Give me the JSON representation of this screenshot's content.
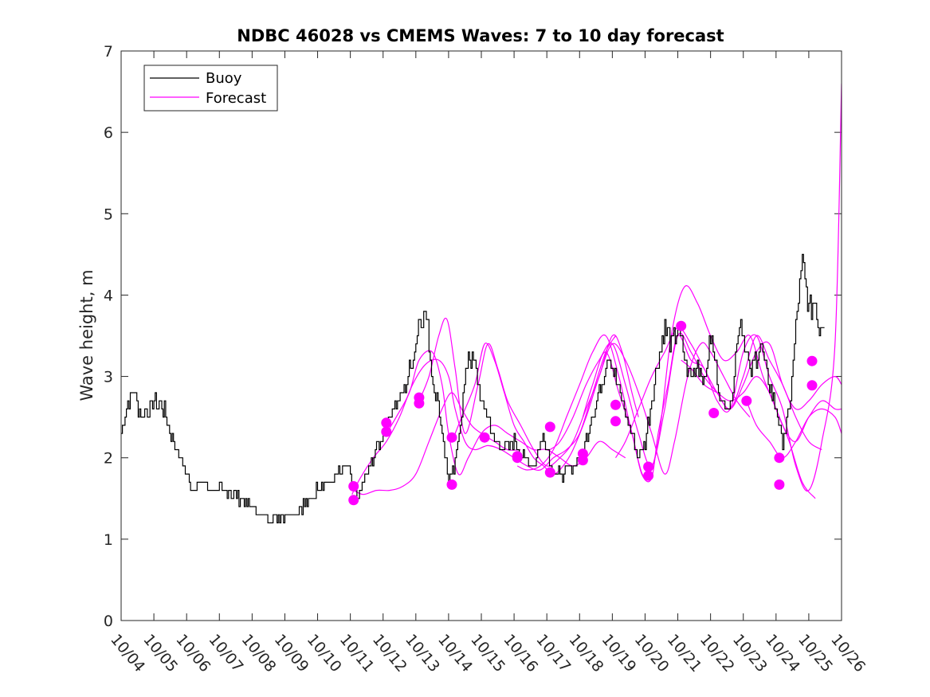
{
  "chart_data": {
    "type": "line",
    "title": "NDBC 46028 vs CMEMS Waves: 7 to 10 day forecast",
    "xlabel": "",
    "ylabel": "Wave height, m",
    "xlim": [
      0,
      22
    ],
    "ylim": [
      0,
      7
    ],
    "yticks": [
      0,
      1,
      2,
      3,
      4,
      5,
      6,
      7
    ],
    "xtick_labels": [
      "10/04",
      "10/05",
      "10/06",
      "10/07",
      "10/08",
      "10/09",
      "10/10",
      "10/11",
      "10/12",
      "10/13",
      "10/14",
      "10/15",
      "10/16",
      "10/17",
      "10/18",
      "10/19",
      "10/20",
      "10/21",
      "10/22",
      "10/23",
      "10/24",
      "10/25",
      "10/26"
    ],
    "legend": {
      "position": "top-left",
      "entries": [
        "Buoy",
        "Forecast"
      ]
    },
    "colors": {
      "buoy": "#000000",
      "forecast": "#ff00ff"
    },
    "buoy": {
      "name": "Buoy",
      "step": 0.04,
      "x": [
        0.0,
        0.2,
        0.4,
        0.6,
        0.8,
        1.0,
        1.3,
        1.5,
        1.8,
        2.0,
        2.2,
        2.5,
        2.8,
        3.2,
        3.6,
        4.0,
        4.3,
        4.6,
        4.9,
        5.2,
        5.5,
        5.8,
        6.1,
        6.4,
        6.6,
        6.9,
        7.2,
        7.5,
        7.8,
        8.0,
        8.3,
        8.6,
        8.9,
        9.1,
        9.3,
        9.5,
        9.7,
        9.9,
        10.0,
        10.2,
        10.4,
        10.6,
        10.8,
        11.0,
        11.2,
        11.4,
        11.7,
        12.0,
        12.3,
        12.6,
        12.9,
        13.2,
        13.5,
        13.8,
        14.0,
        14.3,
        14.6,
        14.9,
        15.2,
        15.5,
        15.8,
        16.0,
        16.3,
        16.6,
        16.8,
        17.0,
        17.2,
        17.4,
        17.6,
        17.8,
        18.0,
        18.3,
        18.6,
        18.9,
        19.2,
        19.5,
        19.8,
        20.0,
        20.2,
        20.4,
        20.6,
        20.8,
        21.0,
        21.2,
        21.3,
        21.5
      ],
      "y": [
        2.3,
        2.7,
        2.8,
        2.5,
        2.6,
        2.7,
        2.6,
        2.3,
        2.0,
        1.8,
        1.6,
        1.7,
        1.6,
        1.6,
        1.5,
        1.4,
        1.3,
        1.25,
        1.3,
        1.3,
        1.4,
        1.5,
        1.7,
        1.7,
        1.8,
        1.9,
        1.5,
        1.8,
        2.1,
        2.3,
        2.6,
        2.8,
        3.2,
        3.7,
        3.8,
        3.0,
        2.6,
        2.0,
        1.7,
        1.9,
        2.6,
        3.3,
        3.1,
        2.7,
        2.5,
        2.2,
        2.1,
        2.2,
        2.0,
        1.9,
        2.3,
        1.8,
        1.8,
        1.9,
        2.0,
        2.4,
        2.8,
        3.3,
        2.8,
        2.4,
        2.0,
        2.2,
        3.0,
        3.6,
        3.4,
        3.6,
        3.2,
        3.0,
        3.2,
        2.9,
        3.5,
        2.7,
        2.6,
        3.8,
        3.0,
        3.4,
        2.9,
        2.6,
        2.2,
        2.6,
        3.6,
        4.4,
        3.8,
        3.9,
        3.6,
        3.7
      ]
    },
    "forecast_series": [
      {
        "name": "Forecast",
        "x": [
          7.05,
          7.3,
          7.7,
          8.1,
          8.5,
          8.9,
          9.3,
          9.7,
          10.0,
          10.2,
          10.5,
          10.8,
          11.2,
          11.6,
          12.0,
          12.4,
          12.8,
          13.2,
          13.6,
          14.0,
          14.4,
          14.8,
          15.1
        ],
        "y": [
          1.55,
          1.75,
          2.0,
          2.2,
          2.5,
          2.9,
          3.15,
          3.2,
          3.0,
          2.6,
          2.2,
          2.1,
          2.15,
          2.1,
          2.0,
          1.9,
          1.85,
          2.0,
          2.1,
          2.3,
          2.8,
          3.3,
          3.5
        ]
      },
      {
        "name": "Forecast",
        "x": [
          7.1,
          7.4,
          7.8,
          8.2,
          8.6,
          9.0,
          9.4,
          9.8,
          10.1,
          10.4,
          10.7,
          11.0,
          11.4,
          11.8,
          12.2
        ],
        "y": [
          1.6,
          1.55,
          1.6,
          1.6,
          1.65,
          1.8,
          2.2,
          2.6,
          2.8,
          2.6,
          2.4,
          2.3,
          2.2,
          2.1,
          2.1
        ]
      },
      {
        "name": "Forecast",
        "x": [
          8.1,
          8.4,
          8.8,
          9.1,
          9.5,
          9.8,
          10.0,
          10.3,
          10.6,
          11.0,
          11.4,
          11.8,
          12.2,
          12.6,
          13.0,
          13.4,
          13.8,
          14.2,
          14.6,
          15.0,
          15.4
        ],
        "y": [
          2.3,
          2.5,
          2.8,
          3.2,
          3.3,
          2.9,
          2.3,
          1.8,
          2.0,
          2.3,
          2.4,
          2.3,
          2.2,
          2.1,
          2.1,
          2.0,
          1.9,
          2.0,
          2.2,
          2.1,
          2.0
        ]
      },
      {
        "name": "Forecast",
        "x": [
          9.1,
          9.4,
          9.7,
          9.95,
          10.2,
          10.5,
          10.9,
          11.2,
          11.5,
          11.8,
          12.2,
          12.6,
          13.0,
          13.4,
          13.8,
          14.2,
          14.6,
          15.0,
          15.3,
          15.6,
          15.8
        ],
        "y": [
          2.7,
          3.0,
          3.5,
          3.7,
          3.1,
          2.3,
          2.9,
          3.4,
          3.1,
          2.7,
          2.4,
          2.1,
          1.9,
          2.0,
          2.2,
          2.6,
          3.0,
          3.5,
          3.3,
          2.8,
          2.5
        ]
      },
      {
        "name": "Forecast",
        "x": [
          10.1,
          10.4,
          10.8,
          11.1,
          11.4,
          11.7,
          12.0,
          12.3,
          12.6,
          12.9,
          13.2,
          13.5,
          13.8,
          14.2,
          14.6,
          15.0,
          15.4,
          15.8,
          16.2,
          16.6,
          16.9,
          17.3,
          17.7,
          18.0,
          18.4,
          18.8,
          19.2
        ],
        "y": [
          2.2,
          2.5,
          2.9,
          3.4,
          3.2,
          2.8,
          2.4,
          2.2,
          2.0,
          1.9,
          1.8,
          1.9,
          2.1,
          2.5,
          3.0,
          3.4,
          3.2,
          2.8,
          2.3,
          1.8,
          2.2,
          3.0,
          3.4,
          3.3,
          3.0,
          2.7,
          2.5
        ]
      },
      {
        "name": "Forecast",
        "x": [
          12.1,
          12.4,
          12.8,
          13.2,
          13.6,
          14.0,
          14.4,
          14.8,
          15.2,
          15.6,
          16.0,
          16.4,
          16.8,
          17.2,
          17.6,
          18.0,
          18.4,
          18.8,
          19.2,
          19.6,
          20.0,
          20.4,
          20.8,
          21.2
        ],
        "y": [
          1.9,
          1.85,
          1.9,
          2.1,
          2.5,
          2.9,
          3.3,
          3.5,
          3.0,
          2.3,
          1.75,
          2.2,
          3.5,
          4.1,
          3.9,
          3.5,
          3.2,
          3.3,
          3.5,
          3.0,
          2.6,
          2.2,
          1.7,
          1.5
        ]
      },
      {
        "name": "Forecast",
        "x": [
          13.1,
          13.4,
          13.8,
          14.2,
          14.6,
          15.0,
          15.4,
          15.8,
          16.2,
          16.6,
          17.0,
          17.4,
          17.8,
          18.2,
          18.6,
          19.0,
          19.4,
          19.8,
          20.2,
          20.6,
          21.0,
          21.4
        ],
        "y": [
          2.1,
          2.2,
          2.5,
          2.9,
          3.2,
          3.4,
          2.9,
          2.3,
          1.9,
          2.6,
          3.5,
          3.3,
          3.0,
          2.8,
          2.6,
          3.0,
          3.5,
          3.2,
          2.9,
          2.5,
          2.2,
          2.1
        ]
      },
      {
        "name": "Forecast",
        "x": [
          14.1,
          14.4,
          14.8,
          15.2,
          15.6,
          15.9,
          16.2,
          16.4,
          16.7,
          17.0,
          17.4,
          17.8,
          18.2,
          18.6,
          19.0,
          19.4,
          19.8,
          20.2,
          20.6,
          21.0,
          21.4,
          21.8,
          22.0
        ],
        "y": [
          2.5,
          2.9,
          3.3,
          2.8,
          2.3,
          1.8,
          1.75,
          2.3,
          2.9,
          3.5,
          3.2,
          3.1,
          2.7,
          2.6,
          3.3,
          3.5,
          3.0,
          2.6,
          1.9,
          1.6,
          2.2,
          3.4,
          6.6
        ]
      },
      {
        "name": "Forecast",
        "x": [
          15.1,
          15.4,
          15.8,
          16.2,
          16.6,
          17.0,
          17.4,
          17.8,
          18.2,
          18.6,
          19.0,
          19.4,
          19.8,
          20.2,
          20.6,
          21.0,
          21.4,
          21.8,
          22.0
        ],
        "y": [
          2.0,
          2.2,
          2.6,
          3.0,
          3.3,
          3.6,
          3.4,
          3.1,
          2.8,
          2.6,
          2.9,
          3.3,
          3.4,
          2.9,
          2.6,
          2.7,
          2.9,
          3.0,
          2.9
        ]
      },
      {
        "name": "Forecast",
        "x": [
          17.1,
          17.4,
          17.8,
          18.2,
          18.6,
          19.0,
          19.4,
          19.8,
          20.2,
          20.6,
          21.0,
          21.4,
          21.8,
          22.0
        ],
        "y": [
          3.2,
          3.1,
          2.9,
          2.8,
          2.7,
          2.8,
          3.0,
          2.8,
          2.4,
          2.2,
          2.5,
          2.7,
          2.6,
          2.6
        ]
      },
      {
        "name": "Forecast",
        "x": [
          19.1,
          19.4,
          19.8,
          20.2,
          20.6,
          21.0,
          21.4,
          21.8,
          22.0
        ],
        "y": [
          2.7,
          2.4,
          2.2,
          2.0,
          2.2,
          2.5,
          2.6,
          2.5,
          2.3
        ]
      }
    ],
    "forecast_markers": {
      "x": [
        7.1,
        7.1,
        8.1,
        8.1,
        9.1,
        9.1,
        10.1,
        10.1,
        11.1,
        12.1,
        12.1,
        13.1,
        13.1,
        14.1,
        14.1,
        15.1,
        15.1,
        16.1,
        16.1,
        17.1,
        18.1,
        19.1,
        20.1,
        20.1,
        21.1,
        21.1
      ],
      "y": [
        1.65,
        1.48,
        2.43,
        2.32,
        2.74,
        2.67,
        2.25,
        1.67,
        2.25,
        2.02,
        2.0,
        2.38,
        1.82,
        2.05,
        1.97,
        2.65,
        2.45,
        1.89,
        1.78,
        3.62,
        2.55,
        2.7,
        2.0,
        1.67,
        3.19,
        2.89
      ]
    }
  }
}
